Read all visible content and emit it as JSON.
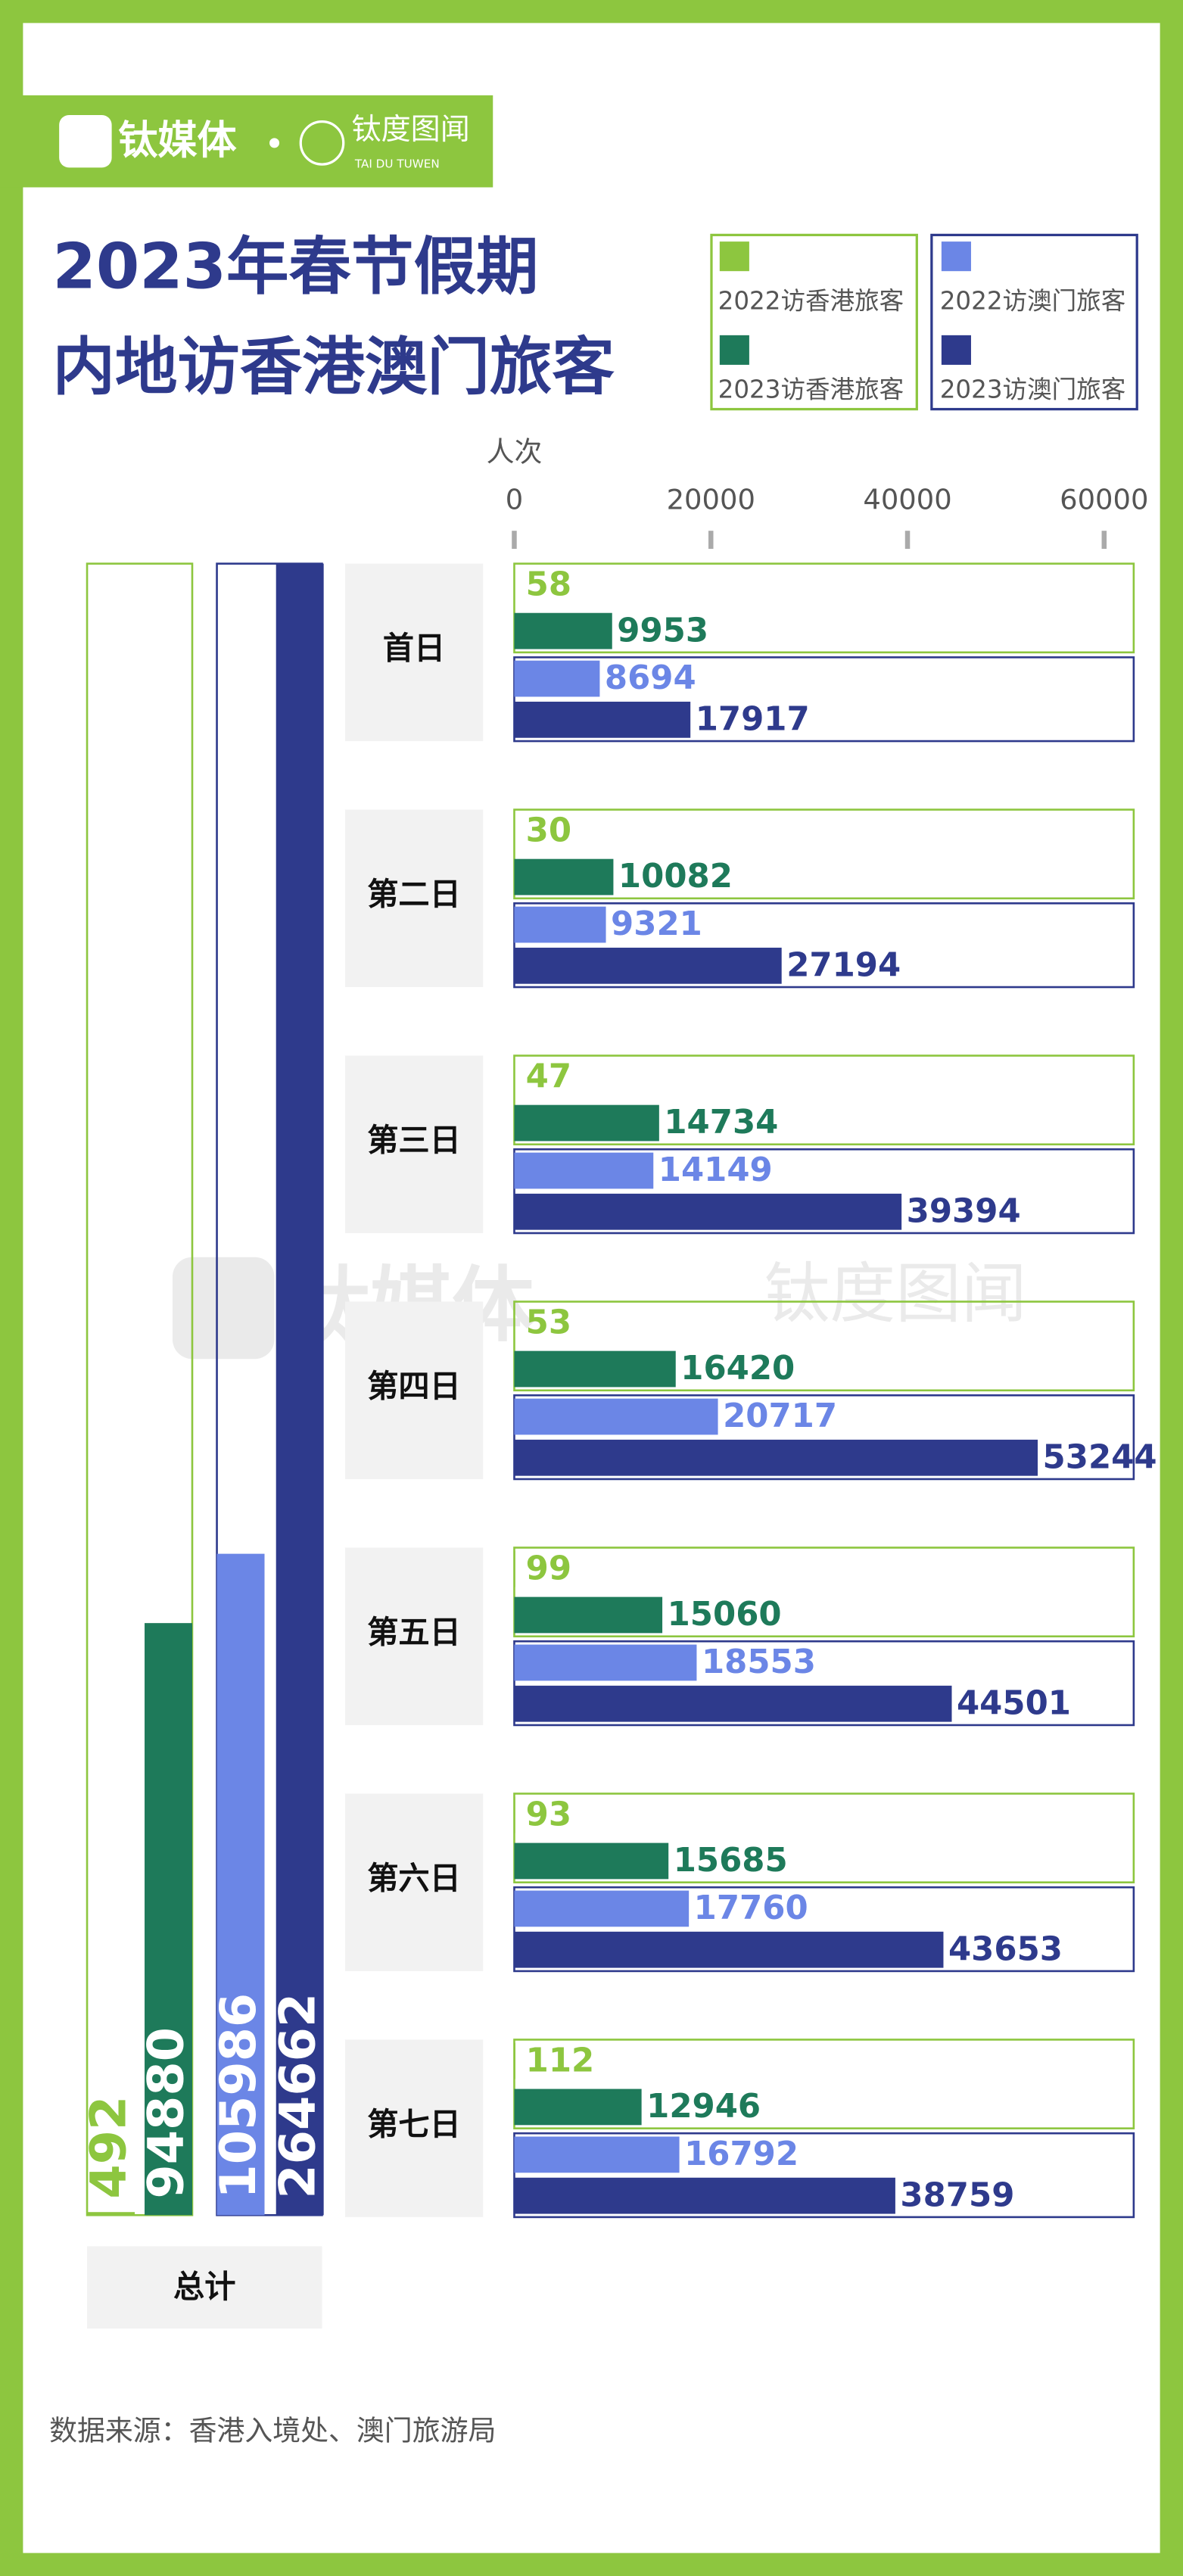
{
  "brand": {
    "name": "钛媒体",
    "sub": "钛度图闻",
    "sub_en": "TAI DU TUWEN"
  },
  "chart_data": {
    "type": "bar",
    "title": [
      "2023年春节假期",
      "内地访香港澳门旅客"
    ],
    "x_label": "人次",
    "categories": [
      "首日",
      "第二日",
      "第三日",
      "第四日",
      "第五日",
      "第六日",
      "第七日"
    ],
    "series": [
      {
        "name": "2022访香港旅客",
        "color": "#8dc63f",
        "values": [
          58,
          30,
          47,
          53,
          99,
          93,
          112
        ]
      },
      {
        "name": "2023访香港旅客",
        "color": "#1e7a5a",
        "values": [
          9953,
          10082,
          14734,
          16420,
          15060,
          15685,
          12946
        ]
      },
      {
        "name": "2022访澳门旅客",
        "color": "#6b86e6",
        "values": [
          8694,
          9321,
          14149,
          20717,
          18553,
          17760,
          16792
        ]
      },
      {
        "name": "2023访澳门旅客",
        "color": "#2e3a8c",
        "values": [
          17917,
          27194,
          39394,
          53244,
          44501,
          43653,
          38759
        ]
      }
    ],
    "xlim": [
      0,
      60000
    ],
    "xticks": [
      0,
      20000,
      40000,
      60000
    ],
    "totals": {
      "label": "总计",
      "values": [
        492,
        94880,
        105986,
        264662
      ]
    },
    "source": "数据来源：香港入境处、澳门旅游局"
  }
}
